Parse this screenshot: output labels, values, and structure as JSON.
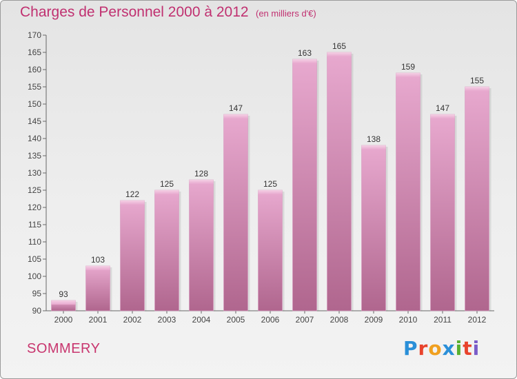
{
  "header": {
    "title": "Charges de Personnel 2000 à 2012",
    "unit": "(en milliers d'€)"
  },
  "footer": {
    "commune": "SOMMERY",
    "logo": "Proxiti"
  },
  "colors": {
    "bar_light": "#e8a9cf",
    "bar_dark": "#b0668e",
    "accent": "#c03070"
  },
  "chart_data": {
    "type": "bar",
    "categories": [
      "2000",
      "2001",
      "2002",
      "2003",
      "2004",
      "2005",
      "2006",
      "2007",
      "2008",
      "2009",
      "2010",
      "2011",
      "2012"
    ],
    "values": [
      93,
      103,
      122,
      125,
      128,
      147,
      125,
      163,
      165,
      138,
      159,
      147,
      155
    ],
    "title": "Charges de Personnel 2000 à 2012",
    "ylim": [
      90,
      170
    ],
    "ytick_step": 5,
    "grid": false,
    "data_labels": true
  }
}
